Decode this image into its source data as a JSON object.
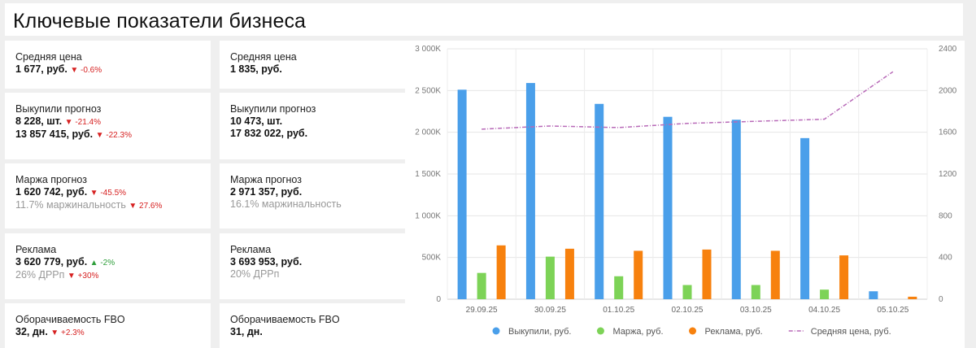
{
  "page": {
    "title": "Ключевые показатели бизнеса"
  },
  "cards": {
    "avg_price_1": {
      "title": "Средняя цена",
      "value": "1 677, руб.",
      "delta": "▼ -0.6%"
    },
    "avg_price_2": {
      "title": "Средняя цена",
      "value": "1 835, руб."
    },
    "bought_1": {
      "title": "Выкупили прогноз",
      "value1": "8 228, шт.",
      "delta1": "▼ -21.4%",
      "value2": "13 857 415, руб.",
      "delta2": "▼ -22.3%"
    },
    "bought_2": {
      "title": "Выкупили прогноз",
      "value1": "10 473, шт.",
      "value2": "17 832 022, руб."
    },
    "margin_1": {
      "title": "Маржа прогноз",
      "value": "1 620 742, руб.",
      "delta": "▼ -45.5%",
      "sub": "11.7% маржинальность",
      "sub_delta": "▼ 27.6%"
    },
    "margin_2": {
      "title": "Маржа прогноз",
      "value": "2 971 357, руб.",
      "sub": "16.1% маржинальность"
    },
    "ads_1": {
      "title": "Реклама",
      "value": "3 620 779, руб.",
      "delta": "▲ -2%",
      "sub": "26% ДРРп",
      "sub_delta": "▼ +30%"
    },
    "ads_2": {
      "title": "Реклама",
      "value": "3 693 953, руб.",
      "sub": "20% ДРРп"
    },
    "turnover_1": {
      "title": "Оборачиваемость FBO",
      "value": "32, дн.",
      "delta": "▼ +2.3%"
    },
    "turnover_2": {
      "title": "Оборачиваемость FBO",
      "value": "31, дн."
    }
  },
  "chart_data": {
    "type": "bar",
    "categories": [
      "29.09.25",
      "30.09.25",
      "01.10.25",
      "02.10.25",
      "03.10.25",
      "04.10.25",
      "05.10.25"
    ],
    "series": [
      {
        "name": "Выкупили, руб.",
        "type": "bar",
        "axis": "left",
        "color": "#4a9fea",
        "values": [
          2510000,
          2590000,
          2340000,
          2185000,
          2150000,
          1930000,
          95000
        ]
      },
      {
        "name": "Маржа, руб.",
        "type": "bar",
        "axis": "left",
        "color": "#7dd357",
        "values": [
          315000,
          510000,
          275000,
          170000,
          170000,
          115000,
          0
        ]
      },
      {
        "name": "Реклама, руб.",
        "type": "bar",
        "axis": "left",
        "color": "#f7810e",
        "values": [
          645000,
          605000,
          580000,
          595000,
          580000,
          525000,
          30000
        ]
      },
      {
        "name": "Средняя цена, руб.",
        "type": "line",
        "axis": "right",
        "color": "#b86ab8",
        "values": [
          1630,
          1660,
          1645,
          1685,
          1705,
          1725,
          2180
        ]
      }
    ],
    "y_left": {
      "min": 0,
      "max": 3000000,
      "ticks": [
        "0",
        "500K",
        "1 000K",
        "1 500K",
        "2 000K",
        "2 500K",
        "3 000K"
      ]
    },
    "y_right": {
      "min": 0,
      "max": 2400,
      "ticks": [
        "0",
        "400",
        "800",
        "1200",
        "1600",
        "2000",
        "2400"
      ]
    },
    "grid": true,
    "legend_position": "bottom"
  }
}
